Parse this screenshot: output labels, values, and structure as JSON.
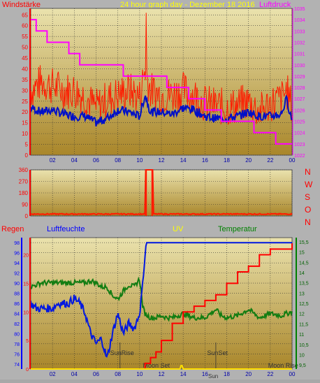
{
  "colors": {
    "plot_top": "#e8dfa9",
    "plot_bottom": "#a88624",
    "grid": "#2f2f2f",
    "wind": "#ff1a00",
    "wind_avg": "#0010c8",
    "pressure": "#ff00ff",
    "dir": "#ff1a00",
    "rain": "#ff0000",
    "humidity": "#0018e0",
    "temperature": "#127d12",
    "uv": "#ffe000",
    "frame": "#b2b2b2"
  },
  "header": {
    "left_label": "Windstärke",
    "title": "24 hour graph day - Dezember 18 2016",
    "right_label": "Luftdruck"
  },
  "dir_labels": [
    "N",
    "W",
    "S",
    "O",
    "N"
  ],
  "bottom_header": {
    "rain": "Regen",
    "humidity": "Luftfeuchte",
    "uv": "UV",
    "temperature": "Temperatur"
  },
  "x_ticks": [
    "02",
    "04",
    "06",
    "08",
    "10",
    "12",
    "14",
    "16",
    "18",
    "20",
    "22",
    "00"
  ],
  "annotations": {
    "sunrise": "SunRise",
    "sunset": "SunSet",
    "moonset": "Moon Set",
    "moonrise": "Moon Rise",
    "sun_small": "Sun"
  },
  "chart_data": [
    {
      "type": "line",
      "x_unit": "hour",
      "xlim": [
        0,
        24
      ],
      "left_axis": {
        "label": "Windstärke",
        "ticks": [
          0,
          5,
          10,
          15,
          20,
          25,
          30,
          35,
          40,
          45,
          50,
          55,
          60,
          65
        ],
        "ylim": [
          0,
          68
        ]
      },
      "right_axis": {
        "label": "Luftdruck",
        "ticks": [
          1022,
          1023,
          1024,
          1025,
          1026,
          1027,
          1028,
          1029,
          1030,
          1031,
          1032,
          1033,
          1034,
          1035
        ],
        "ylim": [
          1022,
          1035
        ]
      },
      "series": [
        {
          "name": "Windstärke",
          "axis": "left",
          "x": [
            0,
            1,
            2,
            3,
            4,
            5,
            6,
            7,
            8,
            9,
            10,
            10.5,
            11,
            12,
            13,
            14,
            15,
            16,
            17,
            18,
            19,
            20,
            21,
            22,
            23,
            23.5,
            24
          ],
          "y": [
            30,
            34,
            32,
            30,
            30,
            27,
            22,
            26,
            28,
            30,
            27,
            40,
            30,
            28,
            28,
            30,
            28,
            24,
            23,
            22,
            23,
            25,
            20,
            24,
            26,
            30,
            22
          ]
        },
        {
          "name": "",
          "axis": "left",
          "x": [
            0,
            1,
            2,
            3,
            4,
            5,
            6,
            7,
            8,
            9,
            10,
            10.5,
            11,
            12,
            13,
            14,
            15,
            16,
            17,
            18,
            19,
            20,
            21,
            22,
            23,
            23.5,
            24
          ],
          "y": [
            22,
            20,
            21,
            19,
            18,
            18,
            15,
            17,
            21,
            20,
            18,
            28,
            20,
            20,
            19,
            22,
            21,
            18,
            17,
            17,
            18,
            20,
            18,
            18,
            19,
            26,
            16
          ]
        },
        {
          "name": "Luftdruck",
          "axis": "right",
          "step": true,
          "x": [
            0,
            0.5,
            1,
            1.5,
            2,
            2.5,
            3,
            3.5,
            4,
            4.5,
            5,
            5.5,
            6,
            6.5,
            7,
            7.5,
            8,
            8.5,
            9,
            9.5,
            10,
            10.5,
            11,
            11.5,
            12,
            12.5,
            13,
            13.5,
            14,
            14.5,
            15,
            15.5,
            16,
            16.5,
            17,
            17.5,
            18,
            18.5,
            19,
            19.5,
            20,
            20.5,
            21,
            21.5,
            22,
            22.5,
            23,
            23.5,
            24
          ],
          "y": [
            1034,
            1033,
            1033,
            1032,
            1032,
            1032,
            1032,
            1031,
            1031,
            1030,
            1030,
            1030,
            1030,
            1030,
            1030,
            1030,
            1030,
            1029,
            1029,
            1029,
            1029,
            1029,
            1029,
            1029,
            1029,
            1028,
            1028,
            1028,
            1028,
            1027,
            1027,
            1027,
            1026,
            1026,
            1026,
            1025,
            1025,
            1025,
            1025,
            1025,
            1025,
            1024,
            1024,
            1024,
            1024,
            1023,
            1023,
            1023,
            1023
          ]
        }
      ]
    },
    {
      "type": "line",
      "x_unit": "hour",
      "xlim": [
        0,
        24
      ],
      "left_axis": {
        "ticks": [
          0,
          90,
          180,
          270,
          360
        ],
        "ylim": [
          0,
          360
        ]
      },
      "right_labels": [
        "N",
        "W",
        "S",
        "O",
        "N"
      ],
      "series": [
        {
          "name": "",
          "x": [
            0,
            10.5,
            10.5,
            11.2,
            11.2,
            24
          ],
          "y": [
            15,
            15,
            360,
            360,
            15,
            15
          ]
        }
      ]
    },
    {
      "type": "line",
      "x_unit": "hour",
      "xlim": [
        0,
        24
      ],
      "axes": {
        "rain": {
          "ticks": [
            0,
            5,
            10,
            15,
            20
          ],
          "ylim": [
            0,
            23
          ]
        },
        "humidity": {
          "ticks": [
            74,
            76,
            78,
            80,
            82,
            84,
            86,
            88,
            90,
            92,
            94,
            96,
            98
          ],
          "ylim": [
            73,
            99
          ]
        },
        "temperature": {
          "ticks": [
            9.5,
            10,
            10.5,
            11,
            11.5,
            12,
            12.5,
            13,
            13.5,
            14,
            14.5,
            15,
            15.5
          ],
          "ylim": [
            9.3,
            15.7
          ]
        }
      },
      "series": [
        {
          "name": "Regen",
          "axis": "rain",
          "step": true,
          "x": [
            0,
            10.3,
            10.5,
            11,
            11.5,
            12,
            13,
            14,
            15,
            16,
            17,
            18,
            19,
            20,
            21,
            22,
            23,
            24
          ],
          "y": [
            0,
            0,
            1,
            2,
            3,
            5,
            8,
            10,
            11,
            12,
            13,
            15,
            17,
            18,
            20,
            21,
            21,
            22
          ]
        },
        {
          "name": "Luftfeuchte",
          "axis": "humidity",
          "x": [
            0,
            0.5,
            1,
            1.5,
            2,
            2.5,
            3,
            3.5,
            4,
            4.5,
            5,
            5.5,
            6,
            6.5,
            7,
            7.5,
            8,
            8.5,
            9,
            9.5,
            10,
            10.3,
            10.6,
            11,
            12,
            13,
            14,
            15,
            16,
            17,
            18,
            19,
            20,
            21,
            22,
            23,
            24
          ],
          "y": [
            86,
            85,
            85,
            85,
            85,
            86,
            86,
            86,
            87,
            86,
            84,
            80,
            78,
            79,
            75,
            80,
            84,
            80,
            82,
            81,
            84,
            90,
            98,
            98,
            98,
            98,
            98,
            98,
            98,
            98,
            98,
            98,
            98,
            98,
            98,
            98,
            98
          ]
        },
        {
          "name": "Temperatur",
          "axis": "temperature",
          "x": [
            0,
            0.5,
            1,
            2,
            3,
            4,
            5,
            5.5,
            6,
            6.5,
            7,
            7.5,
            8,
            8.5,
            9,
            9.5,
            10,
            10.3,
            10.5,
            11,
            11.5,
            12,
            12.5,
            13,
            14,
            15,
            16,
            17,
            17.5,
            18,
            19,
            20,
            21,
            22,
            23,
            24
          ],
          "y": [
            13.3,
            13.4,
            13.5,
            13.5,
            13.5,
            13.5,
            13.5,
            13.6,
            13.5,
            13.3,
            13.3,
            12.9,
            12.7,
            13.1,
            13.4,
            13.3,
            13.7,
            12.3,
            12.0,
            11.8,
            11.8,
            11.9,
            11.8,
            11.8,
            12.0,
            11.8,
            11.8,
            12.2,
            11.9,
            11.8,
            11.9,
            12.2,
            11.8,
            12.0,
            11.9,
            12.1
          ]
        },
        {
          "name": "UV",
          "axis": "rain",
          "x": [
            0,
            13.7,
            13.8,
            13.9,
            14.0,
            24
          ],
          "y": [
            0,
            0,
            0.6,
            0.6,
            0,
            0
          ]
        }
      ]
    }
  ]
}
